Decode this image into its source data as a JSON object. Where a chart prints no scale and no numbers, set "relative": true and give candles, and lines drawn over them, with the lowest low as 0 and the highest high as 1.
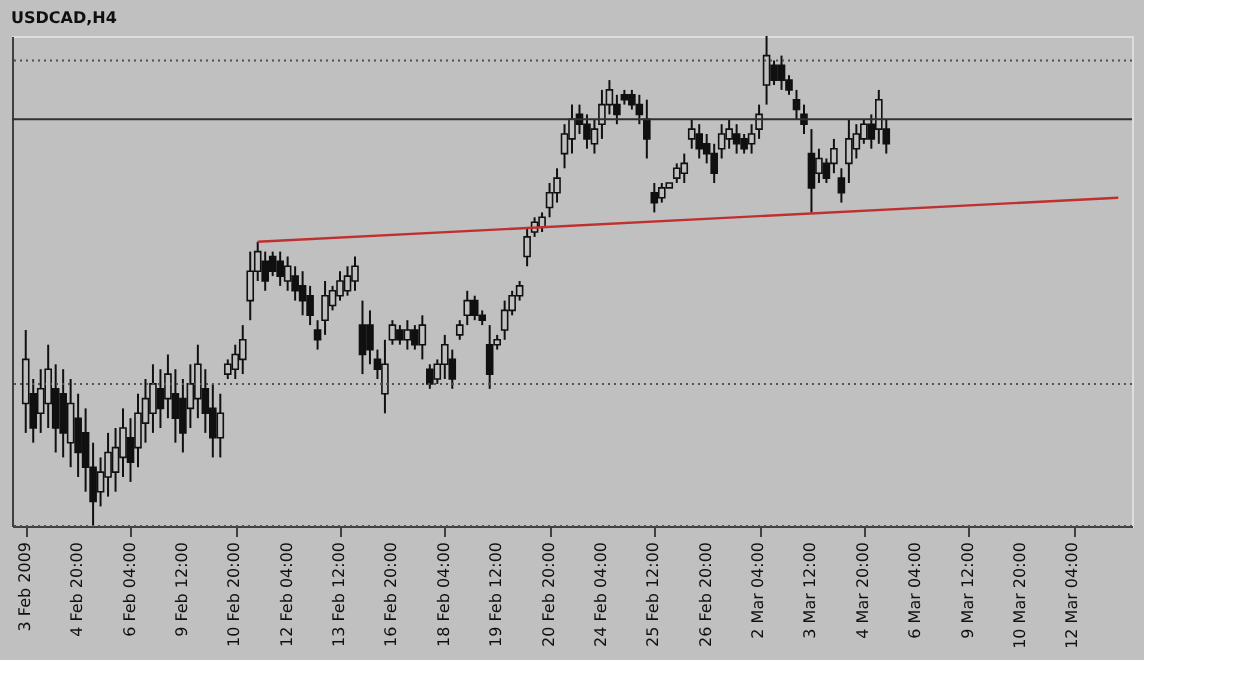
{
  "chart_data": {
    "type": "candlestick",
    "title": "USDCAD,H4",
    "relative": true,
    "color": "#101010",
    "grid": false,
    "tick_labels": "x",
    "categories": [
      "3 Feb 2009",
      null,
      null,
      null,
      null,
      null,
      null,
      "4 Feb 20:00",
      null,
      null,
      null,
      null,
      null,
      null,
      "6 Feb 04:00",
      null,
      null,
      null,
      null,
      null,
      null,
      "9 Feb 12:00",
      null,
      null,
      null,
      null,
      null,
      null,
      "10 Feb 20:00",
      null,
      null,
      null,
      null,
      null,
      null,
      "12 Feb 04:00",
      null,
      null,
      null,
      null,
      null,
      null,
      "13 Feb 12:00",
      null,
      null,
      null,
      null,
      null,
      null,
      "16 Feb 20:00",
      null,
      null,
      null,
      null,
      null,
      null,
      "18 Feb 04:00",
      null,
      null,
      null,
      null,
      null,
      null,
      "19 Feb 12:00",
      null,
      null,
      null,
      null,
      null,
      null,
      "20 Feb 20:00",
      null,
      null,
      null,
      null,
      null,
      null,
      "24 Feb 04:00",
      null,
      null,
      null,
      null,
      null,
      null,
      "25 Feb 12:00",
      null,
      null,
      null,
      null,
      null,
      null,
      "26 Feb 20:00",
      null,
      null,
      null,
      null,
      null,
      null,
      "2 Mar 04:00",
      null,
      null,
      null,
      null,
      null,
      null,
      "3 Mar 12:00",
      null,
      null,
      null,
      null,
      null,
      null,
      "4 Mar 20:00",
      null,
      null,
      null,
      null,
      null,
      null,
      "6 Mar 04:00",
      null,
      null,
      null,
      null,
      null,
      null,
      "9 Mar 12:00",
      null,
      null,
      null,
      null,
      null,
      null,
      "10 Mar 20:00",
      null,
      null,
      null,
      null,
      null,
      null,
      "12 Mar 04:00",
      null,
      null,
      null,
      null,
      null,
      null
    ],
    "ohlc": [
      [
        0.25,
        0.4,
        0.19,
        0.34
      ],
      [
        0.27,
        0.3,
        0.17,
        0.2
      ],
      [
        0.23,
        0.32,
        0.19,
        0.28
      ],
      [
        0.25,
        0.37,
        0.2,
        0.32
      ],
      [
        0.28,
        0.33,
        0.15,
        0.2
      ],
      [
        0.27,
        0.32,
        0.14,
        0.19
      ],
      [
        0.17,
        0.3,
        0.12,
        0.25
      ],
      [
        0.22,
        0.27,
        0.1,
        0.15
      ],
      [
        0.19,
        0.24,
        0.07,
        0.12
      ],
      [
        0.12,
        0.17,
        0.0,
        0.05
      ],
      [
        0.07,
        0.14,
        0.04,
        0.11
      ],
      [
        0.1,
        0.19,
        0.06,
        0.15
      ],
      [
        0.11,
        0.2,
        0.07,
        0.16
      ],
      [
        0.14,
        0.24,
        0.1,
        0.2
      ],
      [
        0.18,
        0.22,
        0.09,
        0.13
      ],
      [
        0.16,
        0.27,
        0.12,
        0.23
      ],
      [
        0.21,
        0.3,
        0.17,
        0.26
      ],
      [
        0.23,
        0.33,
        0.19,
        0.29
      ],
      [
        0.28,
        0.32,
        0.2,
        0.24
      ],
      [
        0.26,
        0.35,
        0.22,
        0.31
      ],
      [
        0.27,
        0.32,
        0.17,
        0.22
      ],
      [
        0.26,
        0.3,
        0.15,
        0.19
      ],
      [
        0.24,
        0.33,
        0.2,
        0.29
      ],
      [
        0.26,
        0.37,
        0.22,
        0.33
      ],
      [
        0.28,
        0.32,
        0.19,
        0.23
      ],
      [
        0.24,
        0.29,
        0.14,
        0.18
      ],
      [
        0.18,
        0.27,
        0.14,
        0.23
      ],
      [
        0.31,
        0.34,
        0.3,
        0.33
      ],
      [
        0.32,
        0.37,
        0.3,
        0.35
      ],
      [
        0.34,
        0.41,
        0.31,
        0.38
      ],
      [
        0.46,
        0.56,
        0.42,
        0.52
      ],
      [
        0.52,
        0.58,
        0.5,
        0.56
      ],
      [
        0.54,
        0.56,
        0.48,
        0.5
      ],
      [
        0.55,
        0.56,
        0.51,
        0.52
      ],
      [
        0.54,
        0.56,
        0.49,
        0.51
      ],
      [
        0.5,
        0.55,
        0.48,
        0.53
      ],
      [
        0.51,
        0.53,
        0.46,
        0.48
      ],
      [
        0.49,
        0.52,
        0.43,
        0.46
      ],
      [
        0.47,
        0.49,
        0.41,
        0.43
      ],
      [
        0.4,
        0.42,
        0.36,
        0.38
      ],
      [
        0.42,
        0.5,
        0.39,
        0.47
      ],
      [
        0.45,
        0.49,
        0.44,
        0.48
      ],
      [
        0.47,
        0.52,
        0.46,
        0.5
      ],
      [
        0.48,
        0.53,
        0.47,
        0.51
      ],
      [
        0.5,
        0.55,
        0.48,
        0.53
      ],
      [
        0.41,
        0.46,
        0.31,
        0.35
      ],
      [
        0.41,
        0.44,
        0.33,
        0.36
      ],
      [
        0.34,
        0.36,
        0.3,
        0.32
      ],
      [
        0.27,
        0.38,
        0.23,
        0.33
      ],
      [
        0.38,
        0.42,
        0.37,
        0.41
      ],
      [
        0.4,
        0.41,
        0.37,
        0.38
      ],
      [
        0.38,
        0.42,
        0.36,
        0.4
      ],
      [
        0.4,
        0.41,
        0.36,
        0.37
      ],
      [
        0.37,
        0.43,
        0.34,
        0.41
      ],
      [
        0.32,
        0.33,
        0.28,
        0.29
      ],
      [
        0.3,
        0.34,
        0.29,
        0.33
      ],
      [
        0.33,
        0.39,
        0.3,
        0.37
      ],
      [
        0.34,
        0.36,
        0.28,
        0.3
      ],
      [
        0.39,
        0.42,
        0.38,
        0.41
      ],
      [
        0.43,
        0.48,
        0.41,
        0.46
      ],
      [
        0.46,
        0.47,
        0.42,
        0.43
      ],
      [
        0.43,
        0.44,
        0.41,
        0.42
      ],
      [
        0.37,
        0.41,
        0.28,
        0.31
      ],
      [
        0.37,
        0.39,
        0.36,
        0.38
      ],
      [
        0.4,
        0.46,
        0.38,
        0.44
      ],
      [
        0.44,
        0.48,
        0.43,
        0.47
      ],
      [
        0.47,
        0.5,
        0.46,
        0.49
      ],
      [
        0.55,
        0.61,
        0.53,
        0.59
      ],
      [
        0.6,
        0.63,
        0.59,
        0.62
      ],
      [
        0.61,
        0.64,
        0.6,
        0.63
      ],
      [
        0.65,
        0.7,
        0.63,
        0.68
      ],
      [
        0.68,
        0.73,
        0.66,
        0.71
      ],
      [
        0.76,
        0.82,
        0.73,
        0.8
      ],
      [
        0.79,
        0.86,
        0.76,
        0.83
      ],
      [
        0.84,
        0.86,
        0.8,
        0.82
      ],
      [
        0.82,
        0.84,
        0.77,
        0.79
      ],
      [
        0.78,
        0.83,
        0.76,
        0.81
      ],
      [
        0.82,
        0.89,
        0.79,
        0.86
      ],
      [
        0.86,
        0.91,
        0.84,
        0.89
      ],
      [
        0.86,
        0.88,
        0.82,
        0.84
      ],
      [
        0.88,
        0.89,
        0.86,
        0.87
      ],
      [
        0.88,
        0.89,
        0.85,
        0.86
      ],
      [
        0.86,
        0.88,
        0.82,
        0.84
      ],
      [
        0.83,
        0.87,
        0.75,
        0.79
      ],
      [
        0.68,
        0.7,
        0.64,
        0.66
      ],
      [
        0.67,
        0.7,
        0.66,
        0.69
      ],
      [
        0.69,
        0.7,
        0.69,
        0.7
      ],
      [
        0.71,
        0.74,
        0.7,
        0.73
      ],
      [
        0.72,
        0.76,
        0.7,
        0.74
      ],
      [
        0.79,
        0.83,
        0.77,
        0.81
      ],
      [
        0.8,
        0.82,
        0.75,
        0.77
      ],
      [
        0.78,
        0.8,
        0.74,
        0.76
      ],
      [
        0.76,
        0.78,
        0.7,
        0.72
      ],
      [
        0.77,
        0.82,
        0.75,
        0.8
      ],
      [
        0.79,
        0.83,
        0.77,
        0.81
      ],
      [
        0.8,
        0.82,
        0.76,
        0.78
      ],
      [
        0.79,
        0.8,
        0.76,
        0.77
      ],
      [
        0.78,
        0.82,
        0.76,
        0.8
      ],
      [
        0.81,
        0.86,
        0.79,
        0.84
      ],
      [
        0.9,
        1.0,
        0.86,
        0.96
      ],
      [
        0.94,
        0.95,
        0.9,
        0.91
      ],
      [
        0.94,
        0.96,
        0.89,
        0.91
      ],
      [
        0.91,
        0.92,
        0.88,
        0.89
      ],
      [
        0.87,
        0.89,
        0.83,
        0.85
      ],
      [
        0.84,
        0.86,
        0.8,
        0.82
      ],
      [
        0.76,
        0.81,
        0.64,
        0.69
      ],
      [
        0.72,
        0.77,
        0.7,
        0.75
      ],
      [
        0.74,
        0.75,
        0.7,
        0.71
      ],
      [
        0.74,
        0.79,
        0.72,
        0.77
      ],
      [
        0.71,
        0.73,
        0.66,
        0.68
      ],
      [
        0.74,
        0.83,
        0.7,
        0.79
      ],
      [
        0.77,
        0.82,
        0.75,
        0.8
      ],
      [
        0.79,
        0.83,
        0.78,
        0.82
      ],
      [
        0.82,
        0.84,
        0.77,
        0.79
      ],
      [
        0.81,
        0.89,
        0.78,
        0.87
      ],
      [
        0.81,
        0.83,
        0.76,
        0.78
      ],
      null,
      null,
      null,
      null,
      null,
      null,
      null,
      null,
      null,
      null,
      null,
      null,
      null,
      null,
      null,
      null,
      null,
      null,
      null,
      null,
      null,
      null,
      null,
      null,
      null,
      null,
      null,
      null,
      null,
      null,
      null
    ],
    "series": [
      {
        "type": "line",
        "values": [
          null,
          null,
          null,
          null,
          null,
          null,
          null,
          null,
          null,
          null,
          null,
          null,
          null,
          null,
          null,
          null,
          null,
          null,
          null,
          null,
          null,
          null,
          null,
          null,
          null,
          null,
          null,
          null,
          null,
          null,
          null,
          0.58,
          null,
          null,
          null,
          null,
          null,
          null,
          null,
          null,
          null,
          null,
          null,
          null,
          null,
          null,
          null,
          null,
          null,
          null,
          null,
          null,
          null,
          null,
          null,
          null,
          null,
          null,
          null,
          null,
          null,
          null,
          null,
          null,
          null,
          null,
          null,
          null,
          null,
          null,
          null,
          null,
          null,
          null,
          null,
          null,
          null,
          null,
          null,
          null,
          null,
          null,
          null,
          null,
          null,
          null,
          null,
          null,
          null,
          null,
          null,
          null,
          null,
          null,
          null,
          null,
          null,
          null,
          null,
          null,
          null,
          null,
          null,
          null,
          null,
          null,
          null,
          null,
          null,
          null,
          null,
          null,
          null,
          null,
          null,
          null,
          null,
          null,
          null,
          null,
          null,
          null,
          null,
          null,
          null,
          null,
          null,
          null,
          null,
          null,
          null,
          null,
          null,
          null,
          null,
          null,
          null,
          null,
          null,
          null,
          null,
          null,
          null,
          null,
          null,
          null,
          0.67
        ],
        "color": "#c03030"
      }
    ],
    "ref_lines": [
      {
        "axis": "y",
        "value": 0.95,
        "color": "#505050",
        "line_style": "dotted"
      },
      {
        "axis": "y",
        "value": 0.83,
        "color": "#303030",
        "line_style": "solid"
      },
      {
        "axis": "y",
        "value": 0.29,
        "color": "#505050",
        "line_style": "dotted"
      },
      {
        "axis": "y",
        "value": 0,
        "color": "#505050",
        "line_style": "dotted"
      }
    ]
  }
}
